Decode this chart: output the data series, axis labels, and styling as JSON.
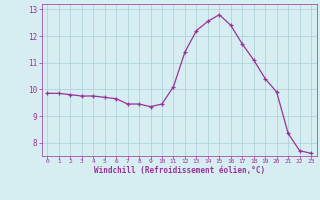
{
  "x": [
    0,
    1,
    2,
    3,
    4,
    5,
    6,
    7,
    8,
    9,
    10,
    11,
    12,
    13,
    14,
    15,
    16,
    17,
    18,
    19,
    20,
    21,
    22,
    23
  ],
  "y": [
    9.85,
    9.85,
    9.8,
    9.75,
    9.75,
    9.7,
    9.65,
    9.45,
    9.45,
    9.35,
    9.45,
    10.1,
    11.4,
    12.2,
    12.55,
    12.8,
    12.4,
    11.7,
    11.1,
    10.4,
    9.9,
    8.35,
    7.7,
    7.6
  ],
  "xlabel": "Windchill (Refroidissement éolien,°C)",
  "xlim": [
    -0.5,
    23.5
  ],
  "ylim": [
    7.5,
    13.2
  ],
  "yticks": [
    8,
    9,
    10,
    11,
    12,
    13
  ],
  "xticks": [
    0,
    1,
    2,
    3,
    4,
    5,
    6,
    7,
    8,
    9,
    10,
    11,
    12,
    13,
    14,
    15,
    16,
    17,
    18,
    19,
    20,
    21,
    22,
    23
  ],
  "line_color": "#993399",
  "marker": "+",
  "bg_color": "#d6eef2",
  "grid_color": "#aacdd8",
  "tick_color": "#993399",
  "label_color": "#993399"
}
